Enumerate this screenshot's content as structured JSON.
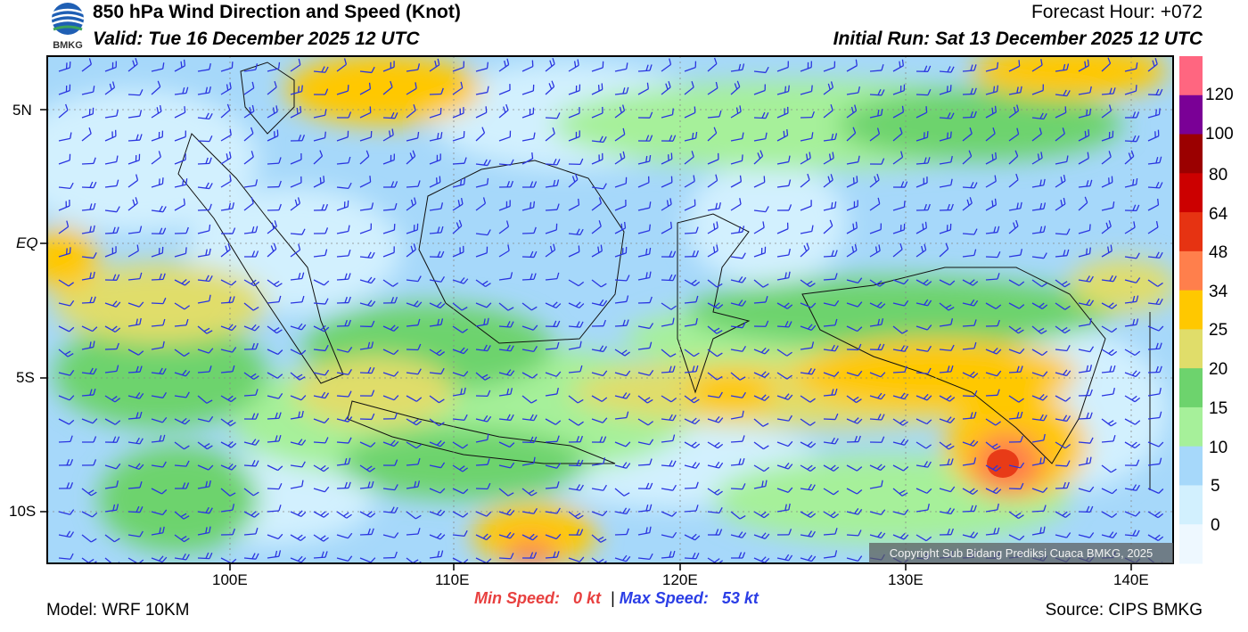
{
  "header": {
    "title": "850 hPa Wind Direction and Speed (Knot)",
    "valid": "Valid: Tue 16 December 2025 12 UTC",
    "forecast_hour": "Forecast Hour: +072",
    "initial_run": "Initial Run: Sat 13 December 2025 12 UTC",
    "logo_text": "BMKG"
  },
  "map": {
    "lat_labels": [
      "5N",
      "EQ",
      "5S",
      "10S"
    ],
    "lon_labels": [
      "100E",
      "110E",
      "120E",
      "130E",
      "140E"
    ],
    "copyright": "Copyright Sub Bidang Prediksi Cuaca BMKG, 2025"
  },
  "colorbar": {
    "labels": [
      "120",
      "100",
      "80",
      "64",
      "48",
      "34",
      "25",
      "20",
      "15",
      "10",
      "5",
      "0"
    ],
    "colors": [
      "#ff6680",
      "#7a0096",
      "#9b0000",
      "#cc0000",
      "#e63312",
      "#ff7f4c",
      "#ffc800",
      "#e0dd6a",
      "#6dd36d",
      "#a6f09a",
      "#a6d8fa",
      "#d2f0fe",
      "#eef8ff"
    ]
  },
  "footer": {
    "model": "Model: WRF 10KM",
    "min_label": "Min Speed:",
    "min_value": "0 kt",
    "separator": "|",
    "max_label": "Max Speed:",
    "max_value": "53 kt",
    "source": "Source: CIPS BMKG"
  }
}
